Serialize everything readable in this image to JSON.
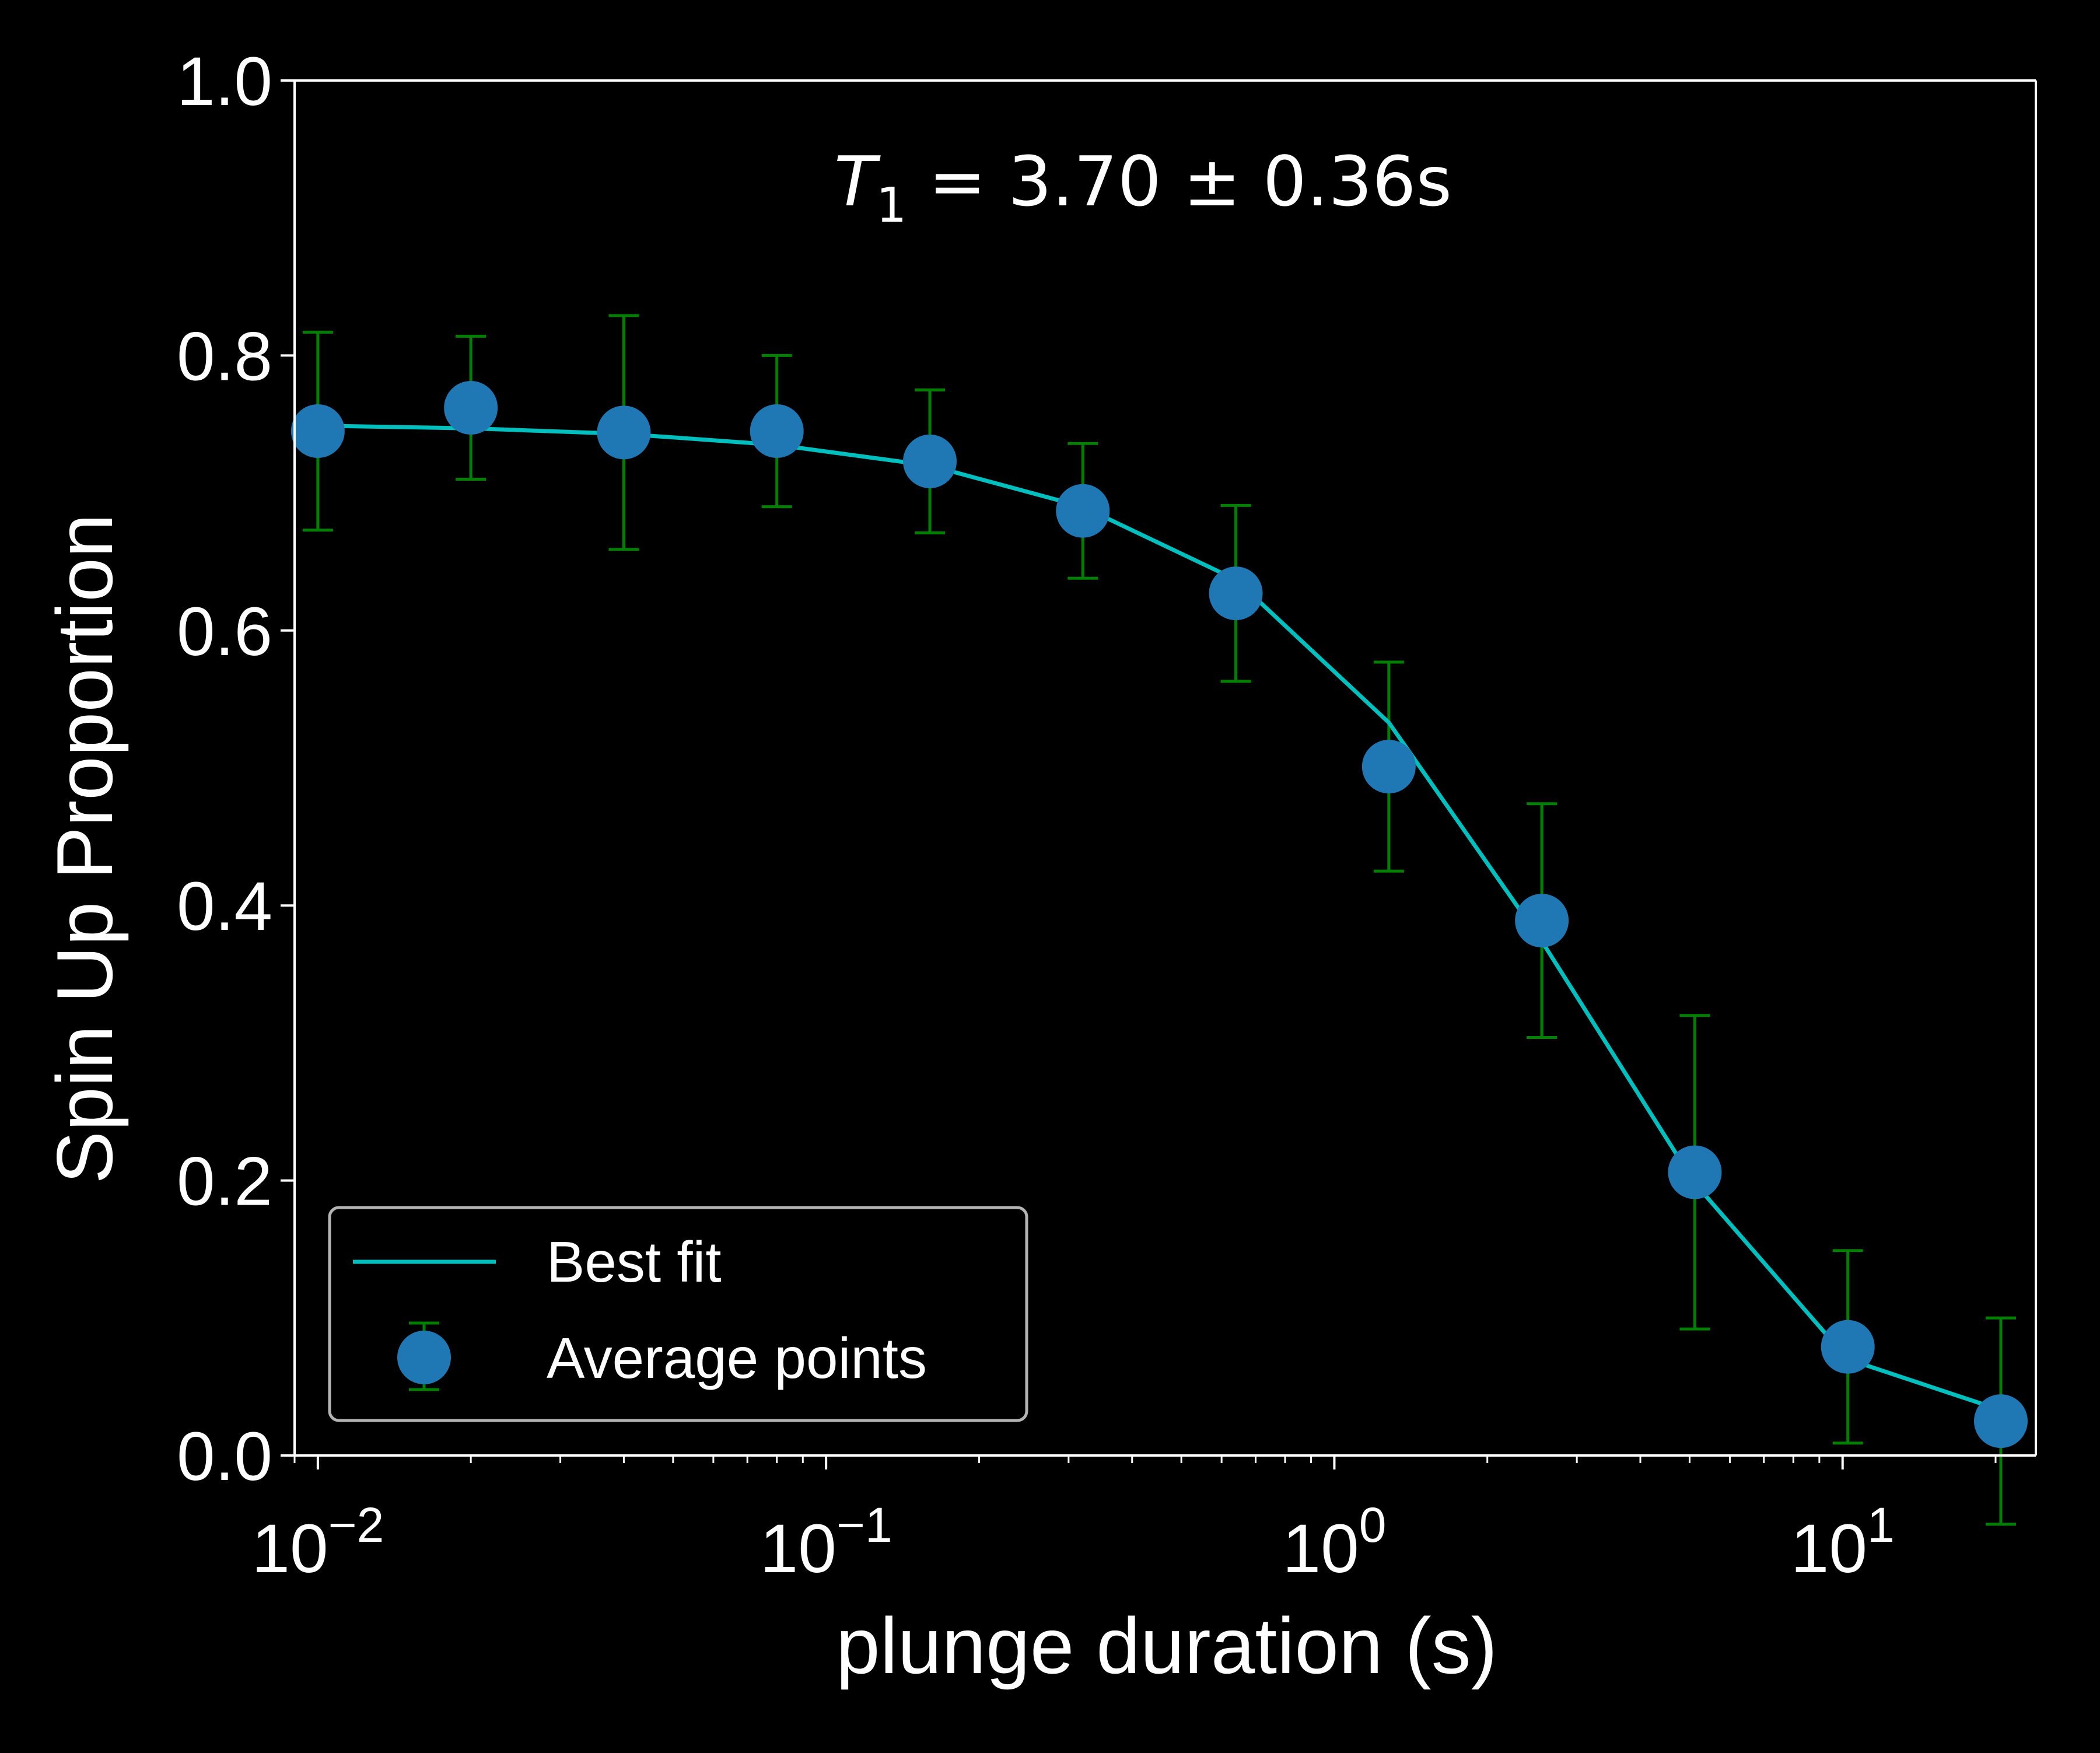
{
  "chart_data": {
    "type": "scatter",
    "x_scale": "log",
    "xlim": [
      0.009,
      24
    ],
    "ylim": [
      0.0,
      1.0
    ],
    "xlabel": "plunge duration (s)",
    "ylabel": "Spin Up Proportion",
    "annotation": {
      "symbol": "T",
      "subscript": "1",
      "text": " = 3.70 ± 0.36s"
    },
    "x_tick_labels": [
      {
        "value": 0.01,
        "base": "10",
        "exp": "−2"
      },
      {
        "value": 0.1,
        "base": "10",
        "exp": "−1"
      },
      {
        "value": 1,
        "base": "10",
        "exp": "0"
      },
      {
        "value": 10,
        "base": "10",
        "exp": "1"
      }
    ],
    "y_ticks": [
      0.0,
      0.2,
      0.4,
      0.6,
      0.8,
      1.0
    ],
    "y_tick_labels": [
      "0.0",
      "0.2",
      "0.4",
      "0.6",
      "0.8",
      "1.0"
    ],
    "grid": false,
    "legend_position": "lower-left",
    "series": [
      {
        "name": "Best fit",
        "kind": "line",
        "color": "#00bfbf",
        "x": [
          0.01,
          0.02,
          0.04,
          0.08,
          0.16,
          0.32,
          0.64,
          1.28,
          2.56,
          5.12,
          10.24,
          20.48
        ],
        "y": [
          0.749,
          0.747,
          0.743,
          0.735,
          0.72,
          0.69,
          0.637,
          0.533,
          0.374,
          0.198,
          0.07,
          0.033
        ]
      },
      {
        "name": "Average points",
        "kind": "errorbar",
        "color": "#1f77b4",
        "error_color": "#008000",
        "x": [
          0.01,
          0.02,
          0.04,
          0.08,
          0.16,
          0.32,
          0.64,
          1.28,
          2.56,
          5.12,
          10.24,
          20.48
        ],
        "y": [
          0.745,
          0.762,
          0.744,
          0.745,
          0.723,
          0.687,
          0.627,
          0.501,
          0.389,
          0.206,
          0.079,
          0.025
        ],
        "y_err": [
          0.072,
          0.052,
          0.085,
          0.055,
          0.052,
          0.049,
          0.064,
          0.076,
          0.085,
          0.114,
          0.07,
          0.075
        ]
      }
    ]
  }
}
